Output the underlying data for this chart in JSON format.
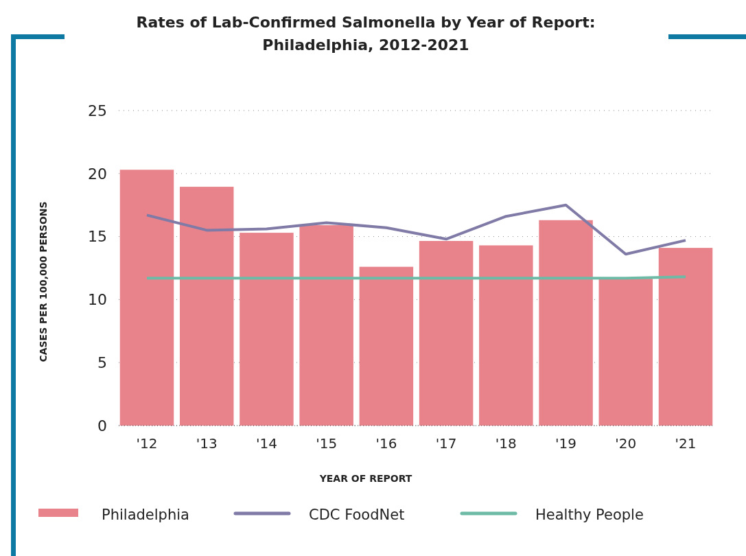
{
  "chart_data": {
    "type": "bar",
    "title": "Rates of Lab-Confirmed Salmonella by Year of Report:\nPhiladelphia, 2012-2021",
    "xlabel": "YEAR OF REPORT",
    "ylabel": "CASES PER 100,000 PERSONS",
    "categories": [
      "'12",
      "'13",
      "'14",
      "'15",
      "'16",
      "'17",
      "'18",
      "'19",
      "'20",
      "'21"
    ],
    "series": [
      {
        "name": "Philadelphia",
        "color": "#e8838c",
        "values": [
          20.3,
          18.95,
          15.3,
          15.9,
          12.6,
          14.65,
          14.3,
          16.3,
          11.65,
          14.1
        ]
      },
      {
        "name": "CDC FoodNet",
        "type": "line",
        "color": "#7f7aa6",
        "values": [
          16.7,
          15.5,
          15.6,
          16.1,
          15.7,
          14.8,
          16.6,
          17.5,
          13.6,
          14.7
        ]
      },
      {
        "name": "Healthy People",
        "type": "line",
        "color": "#6dbba6",
        "values": [
          11.7,
          11.7,
          11.7,
          11.7,
          11.7,
          11.7,
          11.7,
          11.7,
          11.7,
          11.8
        ]
      }
    ],
    "ylim": [
      0,
      25
    ],
    "yticks": [
      0,
      5,
      10,
      15,
      20,
      25
    ],
    "grid": "y",
    "legend": "bottom"
  }
}
